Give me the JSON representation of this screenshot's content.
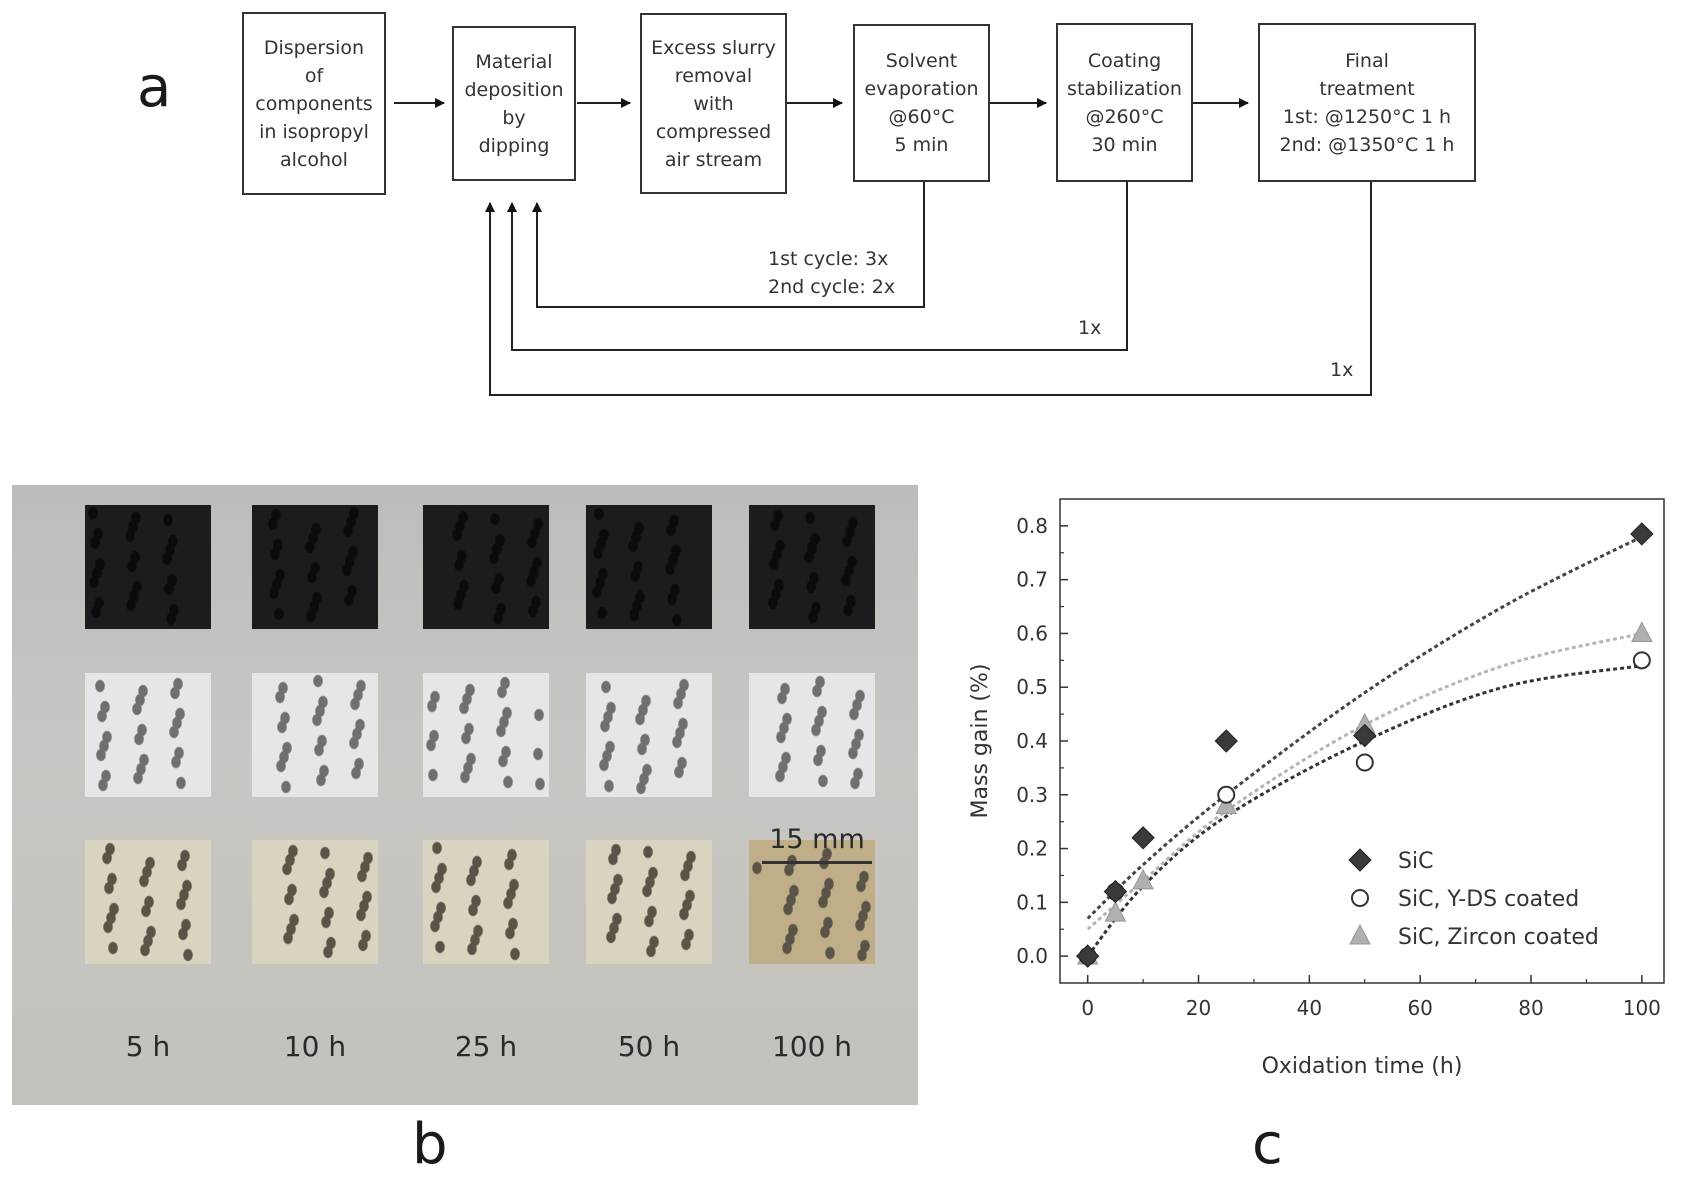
{
  "panels": {
    "a": "a",
    "b": "b",
    "c": "c"
  },
  "flowchart": {
    "steps": [
      "Dispersion\nof\ncomponents\nin isopropyl\nalcohol",
      "Material\ndeposition\nby\ndipping",
      "Excess slurry\nremoval\nwith\ncompressed\nair stream",
      "Solvent\nevaporation\n@60°C\n5 min",
      "Coating\nstabilization\n@260°C\n30 min",
      "Final\ntreatment\n1st: @1250°C 1 h\n2nd: @1350°C 1 h"
    ],
    "loops": [
      "1st cycle: 3x\n2nd cycle: 2x",
      "1x",
      "1x"
    ]
  },
  "photo": {
    "time_labels": [
      "5 h",
      "10 h",
      "25 h",
      "50 h",
      "100 h"
    ],
    "scale_bar": "15 mm",
    "colors": {
      "black_foam": "#1c1c1c",
      "white_foam": "#e6e6e6",
      "cream_foam": "#d9d4bf",
      "aged_foam": "#bfae88"
    }
  },
  "chart_data": {
    "type": "scatter",
    "xlabel": "Oxidation time (h)",
    "ylabel": "Mass gain (%)",
    "xlim": [
      -5,
      104
    ],
    "ylim": [
      -0.05,
      0.85
    ],
    "xticks": [
      0,
      20,
      40,
      60,
      80,
      100
    ],
    "yticks": [
      0.0,
      0.1,
      0.2,
      0.3,
      0.4,
      0.5,
      0.6,
      0.7,
      0.8
    ],
    "legend_position": "bottom-right",
    "series": [
      {
        "name": "SiC",
        "marker": "diamond",
        "color": "#3a3a3a",
        "x": [
          0,
          5,
          10,
          25,
          50,
          100
        ],
        "y": [
          0.0,
          0.12,
          0.22,
          0.4,
          0.41,
          0.785
        ],
        "fit": [
          [
            0,
            0.07
          ],
          [
            10,
            0.17
          ],
          [
            25,
            0.3
          ],
          [
            50,
            0.49
          ],
          [
            75,
            0.65
          ],
          [
            100,
            0.78
          ]
        ],
        "fit_color": "#444444"
      },
      {
        "name": "SiC, Y-DS coated",
        "marker": "circle",
        "color": "#333333",
        "x": [
          0,
          5,
          25,
          50,
          100
        ],
        "y": [
          0.0,
          0.12,
          0.3,
          0.36,
          0.55
        ],
        "fit": [
          [
            0,
            0.0
          ],
          [
            10,
            0.13
          ],
          [
            25,
            0.26
          ],
          [
            50,
            0.4
          ],
          [
            75,
            0.5
          ],
          [
            100,
            0.54
          ]
        ],
        "fit_color": "#333333"
      },
      {
        "name": "SiC, Zircon coated",
        "marker": "triangle",
        "color": "#b0b0b0",
        "x": [
          0,
          5,
          10,
          25,
          50,
          100
        ],
        "y": [
          0.0,
          0.08,
          0.14,
          0.28,
          0.43,
          0.6
        ],
        "fit": [
          [
            0,
            0.05
          ],
          [
            10,
            0.14
          ],
          [
            25,
            0.27
          ],
          [
            50,
            0.43
          ],
          [
            75,
            0.54
          ],
          [
            100,
            0.6
          ]
        ],
        "fit_color": "#b5b5b5"
      }
    ]
  }
}
